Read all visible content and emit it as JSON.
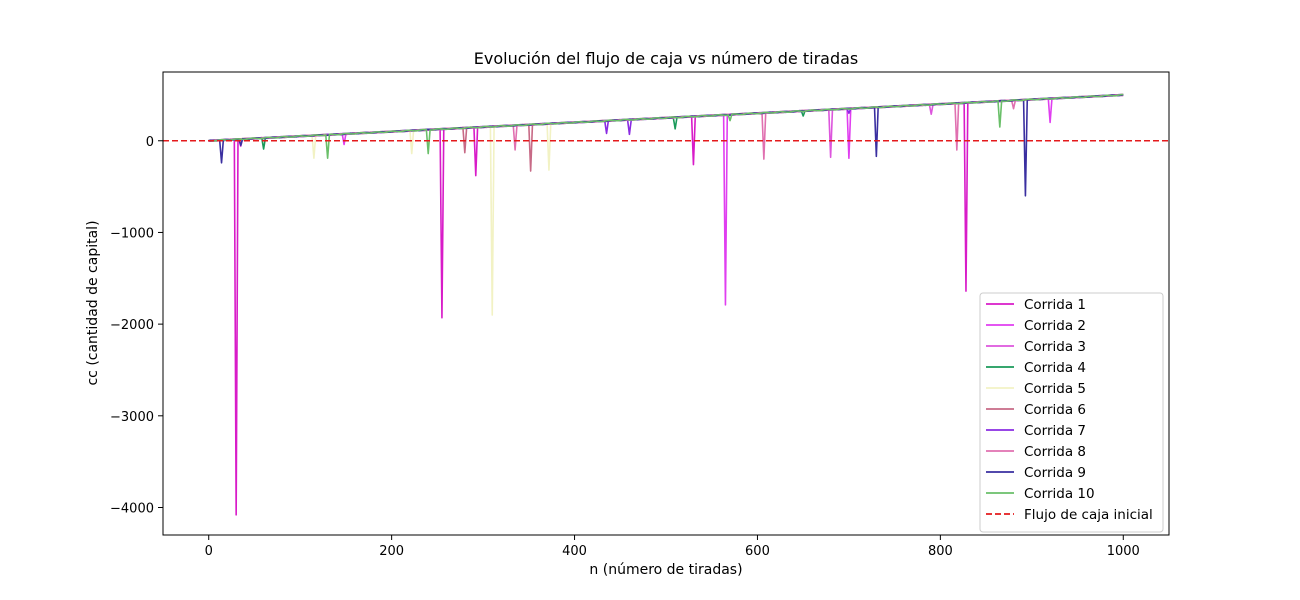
{
  "chart_data": {
    "type": "line",
    "title": "Evolución del flujo de caja vs número de tiradas",
    "xlabel": "n (número de tiradas)",
    "ylabel": "cc (cantidad de capital)",
    "xlim": [
      -50,
      1050
    ],
    "ylim": [
      -4300,
      750
    ],
    "xticks": [
      0,
      200,
      400,
      600,
      800,
      1000
    ],
    "yticks": [
      -4000,
      -3000,
      -2000,
      -1000,
      0
    ],
    "xtick_labels": [
      "0",
      "200",
      "400",
      "600",
      "800",
      "1000"
    ],
    "ytick_labels": [
      "−4000",
      "−3000",
      "−2000",
      "−1000",
      "0"
    ],
    "grid": false,
    "legend_position": "lower right",
    "baseline": {
      "name": "Flujo de caja inicial",
      "value": 0,
      "color": "#e41a1c",
      "style": "dashed"
    },
    "trend": {
      "start": 0,
      "end": 500,
      "n_max": 1000
    },
    "series": [
      {
        "name": "Corrida 1",
        "color": "#d81bc8",
        "dips": [
          [
            30,
            -4080
          ],
          [
            255,
            -1930
          ],
          [
            828,
            -1640
          ],
          [
            530,
            -260
          ],
          [
            292,
            -380
          ]
        ]
      },
      {
        "name": "Corrida 2",
        "color": "#e03ef0",
        "dips": [
          [
            565,
            -1790
          ],
          [
            700,
            -190
          ],
          [
            148,
            -40
          ],
          [
            920,
            200
          ]
        ]
      },
      {
        "name": "Corrida 3",
        "color": "#dd55dd",
        "dips": [
          [
            680,
            -180
          ],
          [
            790,
            290
          ],
          [
            35,
            -60
          ]
        ]
      },
      {
        "name": "Corrida 4",
        "color": "#1a9a5a",
        "dips": [
          [
            60,
            -90
          ],
          [
            510,
            130
          ],
          [
            650,
            270
          ]
        ]
      },
      {
        "name": "Corrida 5",
        "color": "#f2f2c4",
        "dips": [
          [
            310,
            -1900
          ],
          [
            372,
            -320
          ],
          [
            115,
            -190
          ],
          [
            222,
            -140
          ]
        ]
      },
      {
        "name": "Corrida 6",
        "color": "#c76a86",
        "dips": [
          [
            352,
            -330
          ],
          [
            280,
            -130
          ]
        ]
      },
      {
        "name": "Corrida 7",
        "color": "#8a2be2",
        "dips": [
          [
            435,
            80
          ],
          [
            460,
            70
          ],
          [
            700,
            300
          ]
        ]
      },
      {
        "name": "Corrida 8",
        "color": "#e070b0",
        "dips": [
          [
            607,
            -200
          ],
          [
            818,
            -100
          ],
          [
            335,
            -100
          ],
          [
            880,
            350
          ]
        ]
      },
      {
        "name": "Corrida 9",
        "color": "#3a2fa0",
        "dips": [
          [
            14,
            -240
          ],
          [
            893,
            -600
          ],
          [
            730,
            -170
          ],
          [
            35,
            -50
          ]
        ]
      },
      {
        "name": "Corrida 10",
        "color": "#6abf69",
        "dips": [
          [
            130,
            -190
          ],
          [
            865,
            150
          ],
          [
            240,
            -140
          ],
          [
            570,
            220
          ]
        ]
      }
    ]
  }
}
